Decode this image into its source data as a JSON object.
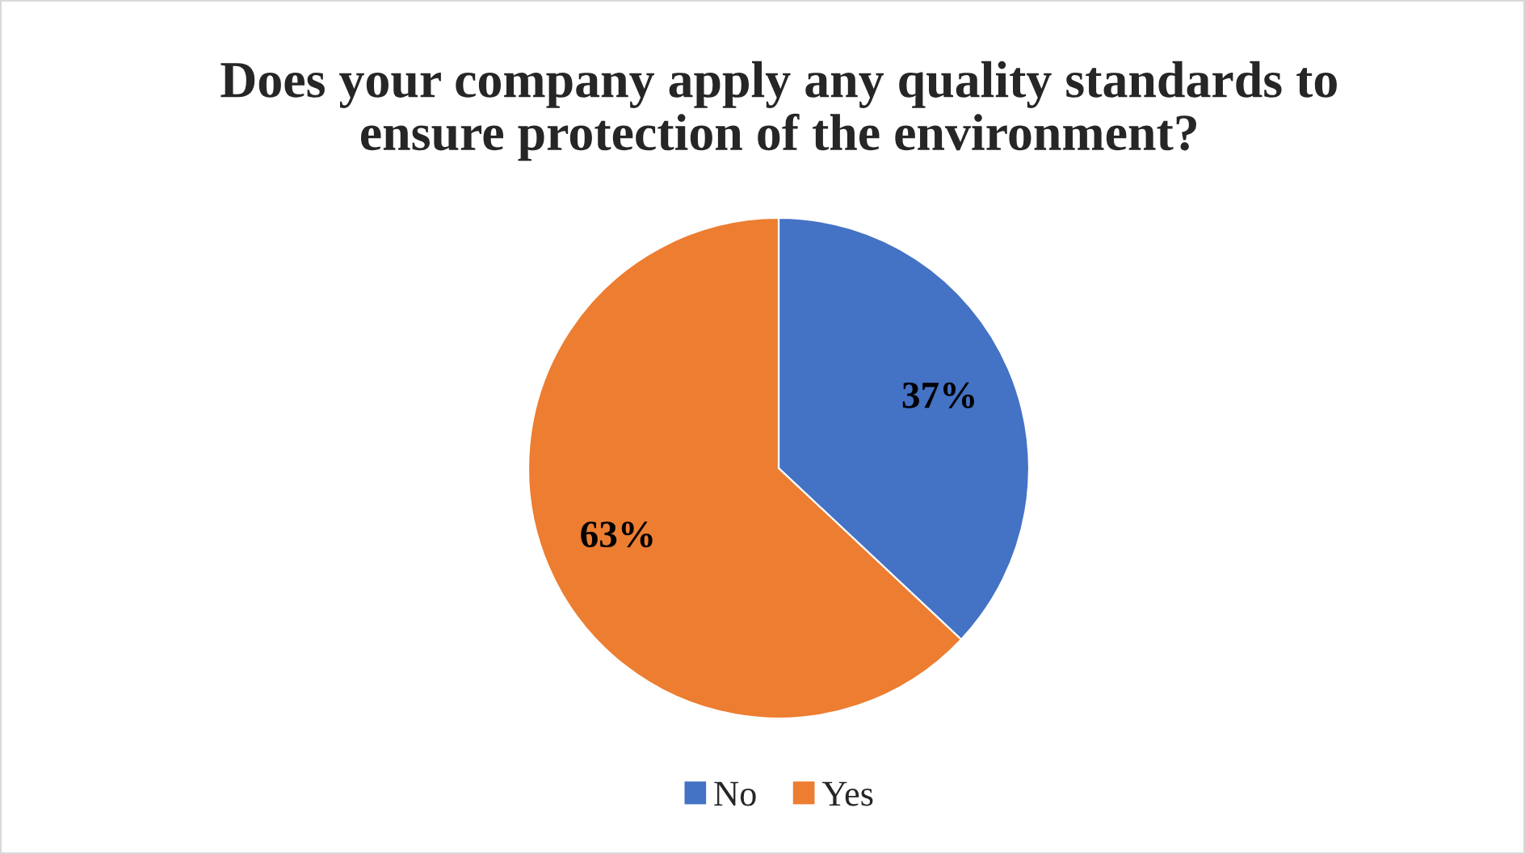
{
  "chart_data": {
    "type": "pie",
    "title": "Does your company apply any quality standards to\nensure protection of the environment?",
    "categories": [
      "No",
      "Yes"
    ],
    "values": [
      37,
      63
    ],
    "colors": [
      "#4472c4",
      "#ed7d31"
    ],
    "value_labels": [
      "37%",
      "63%"
    ],
    "legend": "bottom"
  }
}
